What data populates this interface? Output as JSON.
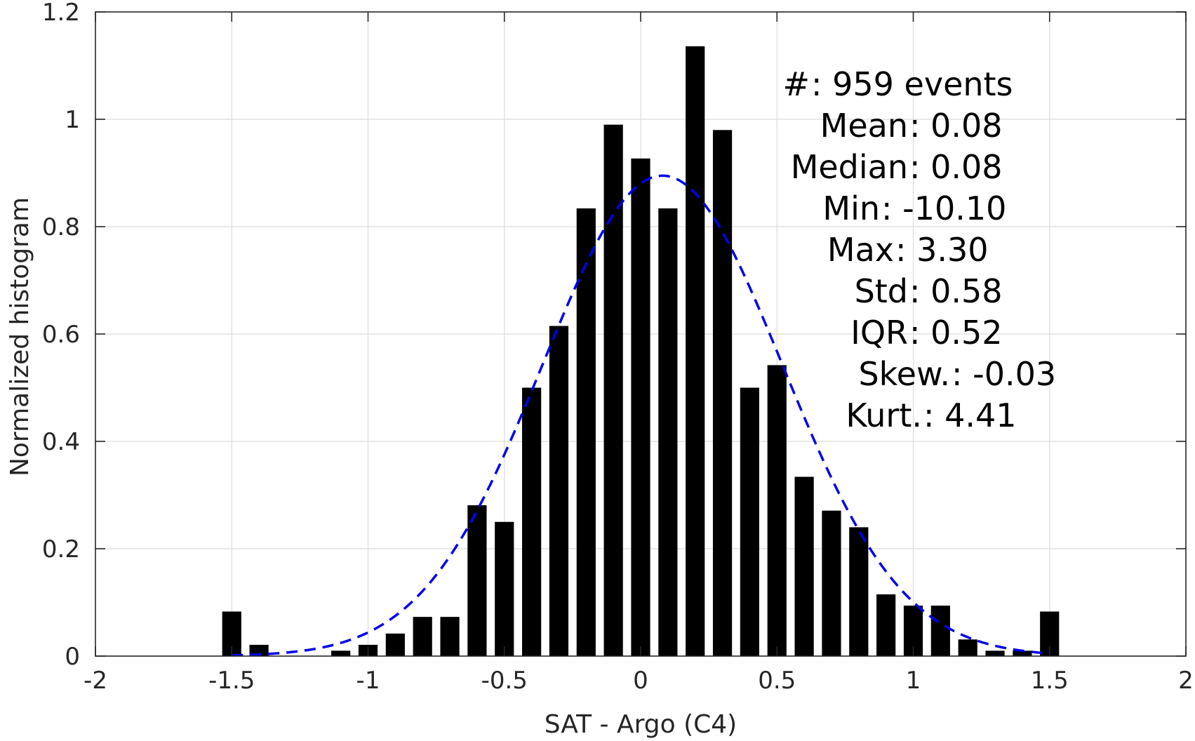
{
  "chart_data": {
    "type": "bar",
    "xlabel": "SAT - Argo (C4)",
    "ylabel": "Normalized histogram",
    "xlim": [
      -2,
      2
    ],
    "ylim": [
      0,
      1.2
    ],
    "grid": true,
    "xticks": [
      -2,
      -1.5,
      -1,
      -0.5,
      0,
      0.5,
      1,
      1.5,
      2
    ],
    "yticks": [
      0,
      0.2,
      0.4,
      0.6,
      0.8,
      1,
      1.2
    ],
    "xtick_labels": [
      "-2",
      "-1.5",
      "-1",
      "-0.5",
      "0",
      "0.5",
      "1",
      "1.5",
      "2"
    ],
    "ytick_labels": [
      "0",
      "0.2",
      "0.4",
      "0.6",
      "0.8",
      "1",
      "1.2"
    ],
    "bar_width": 0.07,
    "bins": [
      {
        "x": -1.5,
        "y": 0.083
      },
      {
        "x": -1.4,
        "y": 0.021
      },
      {
        "x": -1.3,
        "y": 0.0
      },
      {
        "x": -1.2,
        "y": 0.0
      },
      {
        "x": -1.1,
        "y": 0.01
      },
      {
        "x": -1.0,
        "y": 0.021
      },
      {
        "x": -0.9,
        "y": 0.042
      },
      {
        "x": -0.8,
        "y": 0.073
      },
      {
        "x": -0.7,
        "y": 0.073
      },
      {
        "x": -0.6,
        "y": 0.281
      },
      {
        "x": -0.5,
        "y": 0.25
      },
      {
        "x": -0.4,
        "y": 0.5
      },
      {
        "x": -0.3,
        "y": 0.615
      },
      {
        "x": -0.2,
        "y": 0.834
      },
      {
        "x": -0.1,
        "y": 0.99
      },
      {
        "x": 0.0,
        "y": 0.927
      },
      {
        "x": 0.1,
        "y": 0.834
      },
      {
        "x": 0.2,
        "y": 1.136
      },
      {
        "x": 0.3,
        "y": 0.98
      },
      {
        "x": 0.4,
        "y": 0.5
      },
      {
        "x": 0.5,
        "y": 0.542
      },
      {
        "x": 0.6,
        "y": 0.334
      },
      {
        "x": 0.7,
        "y": 0.271
      },
      {
        "x": 0.8,
        "y": 0.24
      },
      {
        "x": 0.9,
        "y": 0.115
      },
      {
        "x": 1.0,
        "y": 0.094
      },
      {
        "x": 1.1,
        "y": 0.094
      },
      {
        "x": 1.2,
        "y": 0.031
      },
      {
        "x": 1.3,
        "y": 0.01
      },
      {
        "x": 1.4,
        "y": 0.01
      },
      {
        "x": 1.5,
        "y": 0.083
      }
    ],
    "fit_curve": {
      "style": "dashed",
      "color": "#0000ee",
      "x_range": [
        -1.5,
        1.5
      ],
      "peak_x": 0.08,
      "peak_y": 0.895,
      "std": 0.44
    },
    "stats_lines": [
      {
        "label": "#",
        "sep": " : ",
        "value": "959 events"
      },
      {
        "label": "Mean",
        "sep": " : ",
        "value": "0.08"
      },
      {
        "label": "Median",
        "sep": " : ",
        "value": "0.08"
      },
      {
        "label": "Min",
        "sep": " : ",
        "value": "-10.10"
      },
      {
        "label": "Max",
        "sep": " : ",
        "value": "3.30"
      },
      {
        "label": "Std",
        "sep": " : ",
        "value": "0.58"
      },
      {
        "label": "IQR",
        "sep": " : ",
        "value": "0.52"
      },
      {
        "label": "Skew.",
        "sep": " : ",
        "value": "-0.03"
      },
      {
        "label": "Kurt.",
        "sep": " : ",
        "value": "4.41"
      }
    ]
  }
}
